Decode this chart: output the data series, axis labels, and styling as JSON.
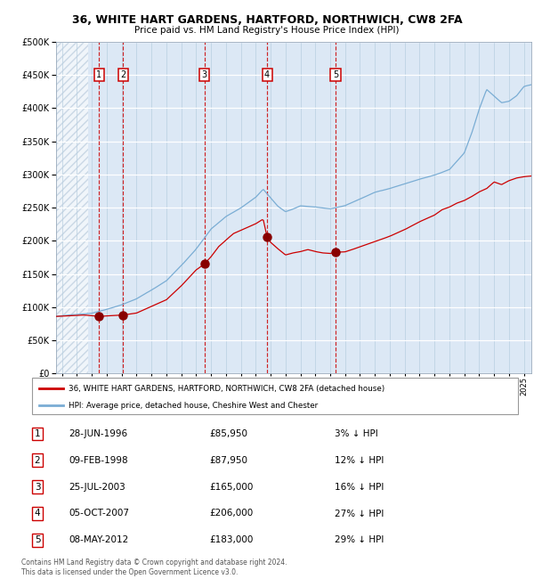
{
  "title": "36, WHITE HART GARDENS, HARTFORD, NORTHWICH, CW8 2FA",
  "subtitle": "Price paid vs. HM Land Registry's House Price Index (HPI)",
  "ylim": [
    0,
    500000
  ],
  "yticks": [
    0,
    50000,
    100000,
    150000,
    200000,
    250000,
    300000,
    350000,
    400000,
    450000,
    500000
  ],
  "xlim_start": 1993.6,
  "xlim_end": 2025.5,
  "hpi_color": "#7aadd4",
  "sale_color": "#cc0000",
  "sale_dot_color": "#880000",
  "plot_bg": "#dce8f5",
  "hatch_end": 1995.75,
  "sale_points": [
    {
      "year": 1996.49,
      "price": 85950,
      "label": "1"
    },
    {
      "year": 1998.11,
      "price": 87950,
      "label": "2"
    },
    {
      "year": 2003.56,
      "price": 165000,
      "label": "3"
    },
    {
      "year": 2007.76,
      "price": 206000,
      "label": "4"
    },
    {
      "year": 2012.36,
      "price": 183000,
      "label": "5"
    }
  ],
  "legend_label_red": "36, WHITE HART GARDENS, HARTFORD, NORTHWICH, CW8 2FA (detached house)",
  "legend_label_blue": "HPI: Average price, detached house, Cheshire West and Chester",
  "footer": "Contains HM Land Registry data © Crown copyright and database right 2024.\nThis data is licensed under the Open Government Licence v3.0.",
  "table_rows": [
    {
      "num": "1",
      "date": "28-JUN-1996",
      "price": "£85,950",
      "pct": "3% ↓ HPI"
    },
    {
      "num": "2",
      "date": "09-FEB-1998",
      "price": "£87,950",
      "pct": "12% ↓ HPI"
    },
    {
      "num": "3",
      "date": "25-JUL-2003",
      "price": "£165,000",
      "pct": "16% ↓ HPI"
    },
    {
      "num": "4",
      "date": "05-OCT-2007",
      "price": "£206,000",
      "pct": "27% ↓ HPI"
    },
    {
      "num": "5",
      "date": "08-MAY-2012",
      "price": "£183,000",
      "pct": "29% ↓ HPI"
    }
  ]
}
